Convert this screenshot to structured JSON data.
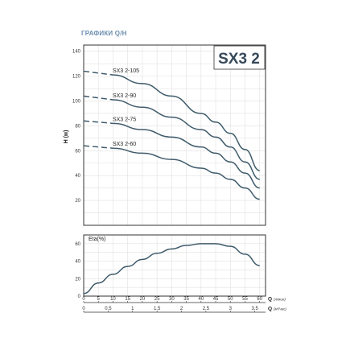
{
  "chart_data": [
    {
      "type": "line",
      "title": "ГРАФИКИ Q/H",
      "model": "SX3 2",
      "xlabel": "Q",
      "x_unit": "(л/мин)",
      "ylabel": "H (м)",
      "xlim": [
        0,
        62
      ],
      "ylim": [
        0,
        145
      ],
      "y_ticks": [
        20,
        40,
        60,
        80,
        100,
        120,
        140
      ],
      "grid": true,
      "series": [
        {
          "name": "SX3 2-105",
          "x": [
            0,
            10,
            20,
            30,
            40,
            45,
            50,
            55,
            60
          ],
          "y": [
            124,
            121,
            114,
            104,
            90,
            83,
            74,
            61,
            44
          ]
        },
        {
          "name": "SX3 2-90",
          "x": [
            0,
            10,
            20,
            30,
            40,
            45,
            50,
            55,
            60
          ],
          "y": [
            104,
            101,
            95,
            87,
            77,
            71,
            63,
            51,
            37
          ]
        },
        {
          "name": "SX3 2-75",
          "x": [
            0,
            10,
            20,
            30,
            40,
            45,
            50,
            55,
            60
          ],
          "y": [
            84,
            82,
            77,
            71,
            63,
            58,
            51,
            42,
            30
          ]
        },
        {
          "name": "SX3 2-60",
          "x": [
            0,
            10,
            20,
            30,
            40,
            45,
            50,
            55,
            60
          ],
          "y": [
            64,
            62,
            58,
            53,
            46,
            42,
            37,
            30,
            21
          ]
        }
      ]
    },
    {
      "type": "line",
      "ylabel": "Eta(%)",
      "xlabel": "Q",
      "xlim": [
        0,
        62
      ],
      "ylim": [
        0,
        70
      ],
      "y_ticks": [
        0,
        20,
        40,
        60
      ],
      "grid": true,
      "series": [
        {
          "x": [
            0,
            5,
            10,
            15,
            20,
            25,
            30,
            35,
            40,
            45,
            50,
            55,
            60
          ],
          "y": [
            3,
            15,
            25,
            34,
            42,
            49,
            54,
            58,
            60,
            60,
            57,
            48,
            35
          ]
        }
      ]
    }
  ],
  "q_axes": [
    {
      "label": "Q",
      "unit": "(л/мин)",
      "ticks": [
        "0",
        "5",
        "10",
        "15",
        "20",
        "25",
        "30",
        "35",
        "40",
        "45",
        "50",
        "55",
        "60"
      ],
      "values": [
        0,
        5,
        10,
        15,
        20,
        25,
        30,
        35,
        40,
        45,
        50,
        55,
        60
      ]
    },
    {
      "label": "Q",
      "unit": "(м³/час)",
      "ticks": [
        "0",
        "0.5",
        "1",
        "1.5",
        "2",
        "2.5",
        "3",
        "3.5"
      ],
      "values": [
        0,
        0.5,
        1,
        1.5,
        2,
        2.5,
        3,
        3.5
      ]
    }
  ]
}
